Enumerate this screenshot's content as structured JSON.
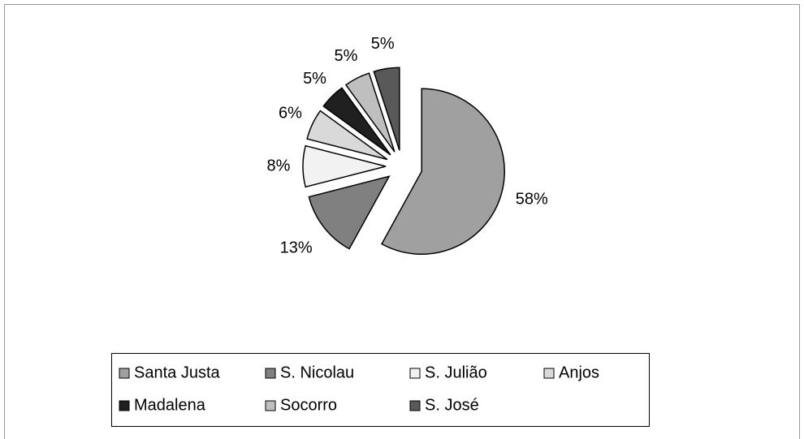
{
  "chart_data": {
    "type": "pie",
    "categories": [
      "Santa Justa",
      "S. Nicolau",
      "S. Julião",
      "Anjos",
      "Madalena",
      "Socorro",
      "S. José"
    ],
    "values": [
      58,
      13,
      8,
      6,
      5,
      5,
      5
    ],
    "value_labels": [
      "58%",
      "13%",
      "8%",
      "6%",
      "5%",
      "5%",
      "5%"
    ],
    "colors": [
      "#a0a0a0",
      "#808080",
      "#f2f2f2",
      "#d9d9d9",
      "#202020",
      "#bfbfbf",
      "#595959"
    ],
    "exploded": true,
    "legend": "bottom"
  }
}
